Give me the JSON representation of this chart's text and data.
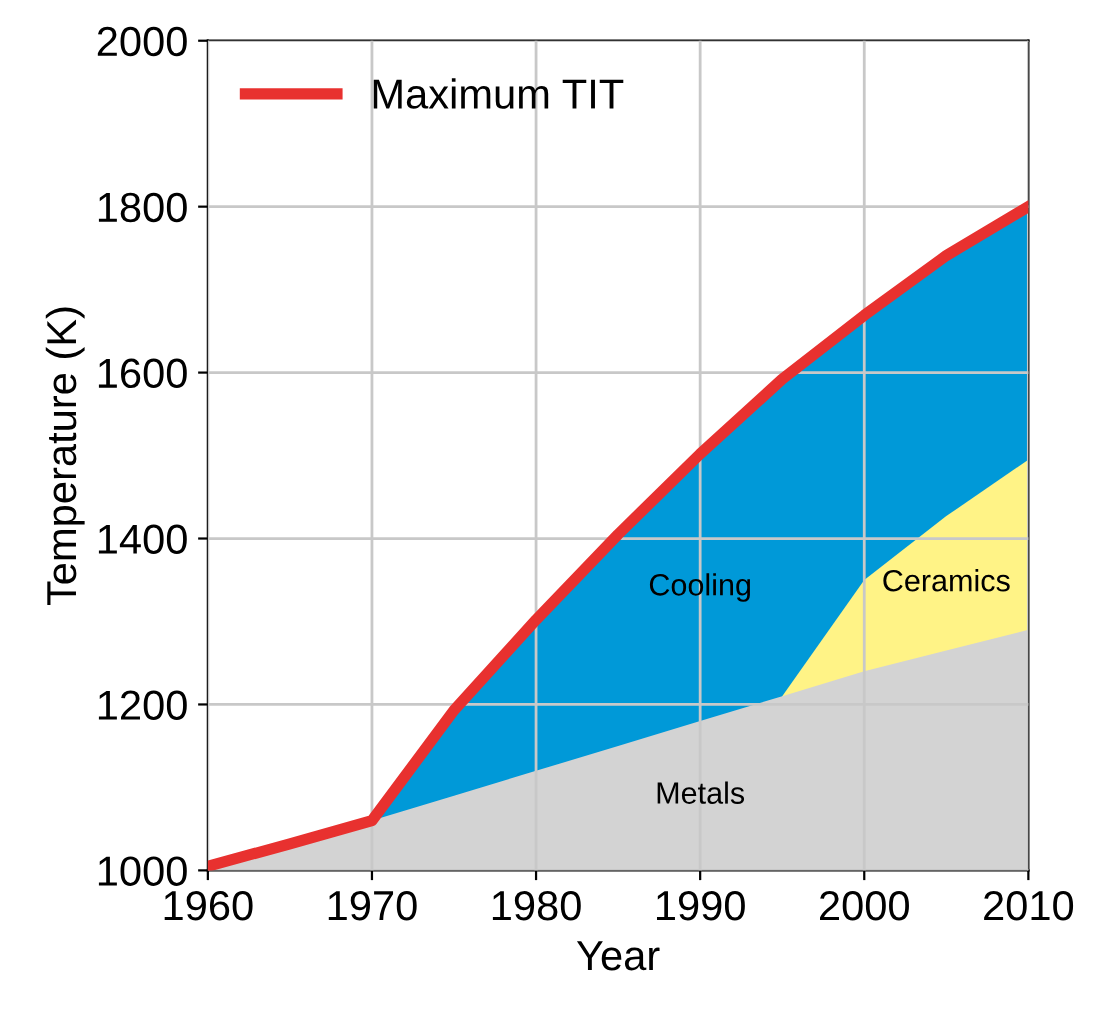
{
  "chart_data": {
    "type": "area",
    "xlabel": "Year",
    "ylabel": "Temperature (K)",
    "x": [
      1960,
      1965,
      1970,
      1975,
      1980,
      1985,
      1990,
      1995,
      2000,
      2005,
      2010
    ],
    "series": [
      {
        "name": "Cooling",
        "color": "#0099d8",
        "values": [
          null,
          null,
          1060,
          1193,
          1302,
          1405,
          1502,
          1592,
          1669,
          1741,
          1800
        ]
      },
      {
        "name": "Ceramics",
        "color": "#fff386",
        "values": [
          null,
          null,
          null,
          null,
          null,
          null,
          null,
          1210,
          1350,
          1427,
          1495
        ]
      },
      {
        "name": "Metals",
        "color": "#d3d3d3",
        "values": [
          1005,
          1032,
          1060,
          1090,
          1120,
          1150,
          1180,
          1210,
          1240,
          1265,
          1290
        ]
      },
      {
        "name": "Maximum TIT",
        "type": "line",
        "color": "#e8312f",
        "values": [
          1005,
          1032,
          1060,
          1193,
          1302,
          1405,
          1502,
          1592,
          1669,
          1741,
          1800
        ]
      }
    ],
    "xlim": [
      1960,
      2010
    ],
    "ylim": [
      1000,
      2000
    ],
    "xticks": [
      1960,
      1970,
      1980,
      1990,
      2000,
      2010
    ],
    "yticks": [
      1000,
      1200,
      1400,
      1600,
      1800,
      2000
    ],
    "grid": true,
    "legend": "top left"
  }
}
